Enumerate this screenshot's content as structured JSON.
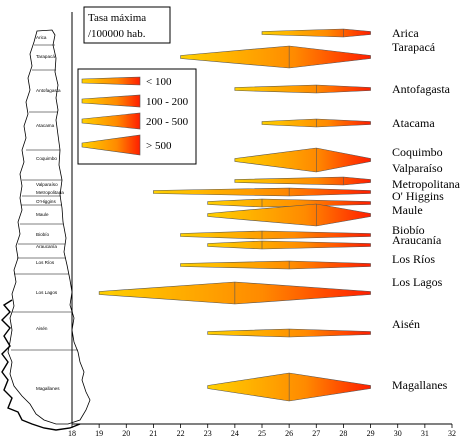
{
  "chart_data": {
    "type": "range-spindle",
    "x_ticks": [
      18,
      19,
      20,
      21,
      22,
      23,
      24,
      25,
      26,
      27,
      28,
      29,
      30,
      31,
      32
    ],
    "xlim": [
      18,
      32
    ],
    "legend": {
      "title": [
        "Tasa máxima",
        "/100000 hab."
      ],
      "entries": [
        "< 100",
        "100 - 200",
        "200 - 500",
        "> 500"
      ]
    },
    "colors": {
      "low": "#ffc800",
      "high": "#ff2a00",
      "axis": "#000000",
      "outline": "#555555"
    },
    "regions": [
      {
        "name": "Arica",
        "start": 25,
        "end": 29,
        "peak": 28.0,
        "tasa": "< 100"
      },
      {
        "name": "Tarapacá",
        "start": 22,
        "end": 29,
        "peak": 26.0,
        "tasa": "100 - 200"
      },
      {
        "name": "Antofagasta",
        "start": 24,
        "end": 29,
        "peak": 27.0,
        "tasa": "< 100"
      },
      {
        "name": "Atacama",
        "start": 25,
        "end": 29,
        "peak": 27.0,
        "tasa": "< 100"
      },
      {
        "name": "Coquimbo",
        "start": 24,
        "end": 29,
        "peak": 27.0,
        "tasa": "200 - 500"
      },
      {
        "name": "Valparaíso",
        "start": 24,
        "end": 29,
        "peak": 28.0,
        "tasa": "< 100"
      },
      {
        "name": "Metropolitana",
        "start": 21,
        "end": 29,
        "peak": 26.0,
        "tasa": "< 100"
      },
      {
        "name": "O' Higgins",
        "start": 23,
        "end": 29,
        "peak": 25.0,
        "tasa": "< 100"
      },
      {
        "name": "Maule",
        "start": 23,
        "end": 29,
        "peak": 27.0,
        "tasa": "100 - 200"
      },
      {
        "name": "Biobío",
        "start": 22,
        "end": 29,
        "peak": 25.0,
        "tasa": "< 100"
      },
      {
        "name": "Araucanía",
        "start": 23,
        "end": 29,
        "peak": 25.0,
        "tasa": "< 100"
      },
      {
        "name": "Los Ríos",
        "start": 22,
        "end": 29,
        "peak": 26.0,
        "tasa": "< 100"
      },
      {
        "name": "Los Lagos",
        "start": 19,
        "end": 29,
        "peak": 24.0,
        "tasa": "100 - 200"
      },
      {
        "name": "Aisén",
        "start": 23,
        "end": 29,
        "peak": 26.0,
        "tasa": "< 100"
      },
      {
        "name": "Magallanes",
        "start": 23,
        "end": 29,
        "peak": 26.0,
        "tasa": "> 500"
      }
    ],
    "map_labels": [
      "Arica",
      "Tarapacá",
      "Antofagasta",
      "Atacama",
      "Coquimbo",
      "Valparaíso",
      "Metropolitana",
      "O'Higgins",
      "Maule",
      "Biobío",
      "Araucanía",
      "Los Ríos",
      "Los Lagos",
      "Aisén",
      "Magallanes"
    ]
  }
}
